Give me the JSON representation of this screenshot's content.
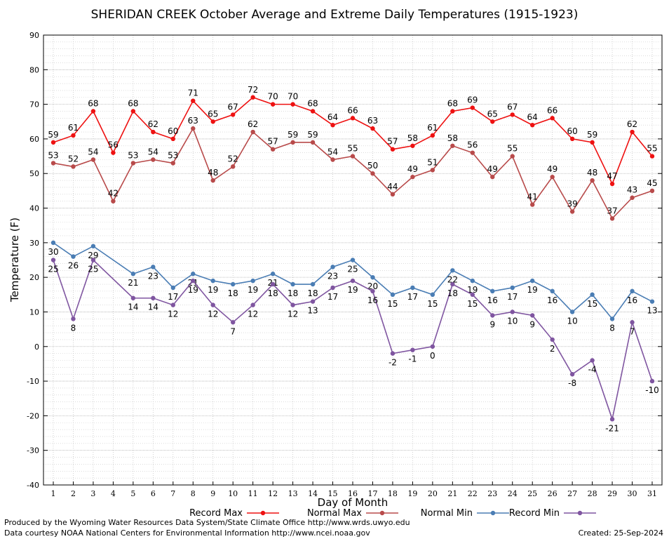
{
  "chart_data": {
    "type": "line",
    "title": "SHERIDAN CREEK October Average and Extreme Daily Temperatures (1915-1923)",
    "xlabel": "Day of Month",
    "ylabel": "Temperature (F)",
    "ylim": [
      -40,
      90
    ],
    "xlim": [
      1,
      31
    ],
    "yticks": [
      -40,
      -30,
      -20,
      -10,
      0,
      10,
      20,
      30,
      40,
      50,
      60,
      70,
      80,
      90
    ],
    "x": [
      1,
      2,
      3,
      4,
      5,
      6,
      7,
      8,
      9,
      10,
      11,
      12,
      13,
      14,
      15,
      16,
      17,
      18,
      19,
      20,
      21,
      22,
      23,
      24,
      25,
      26,
      27,
      28,
      29,
      30,
      31
    ],
    "grid": true,
    "legend_position": "bottom",
    "series": [
      {
        "name": "Record Max",
        "color": "#ee1111",
        "label_pos": "above",
        "values": [
          59,
          61,
          68,
          56,
          68,
          62,
          60,
          71,
          65,
          67,
          72,
          70,
          70,
          68,
          64,
          66,
          63,
          57,
          58,
          61,
          68,
          69,
          65,
          67,
          64,
          66,
          60,
          59,
          47,
          62,
          55
        ]
      },
      {
        "name": "Normal Max",
        "color": "#b84a4a",
        "label_pos": "above",
        "values": [
          53,
          52,
          54,
          42,
          53,
          54,
          53,
          63,
          48,
          52,
          62,
          57,
          59,
          59,
          54,
          55,
          50,
          44,
          49,
          51,
          58,
          56,
          49,
          55,
          41,
          49,
          39,
          48,
          37,
          43,
          45
        ]
      },
      {
        "name": "Normal Min",
        "color": "#4a7db4",
        "label_pos": "below",
        "values": [
          30,
          26,
          29,
          null,
          21,
          23,
          17,
          21,
          19,
          18,
          19,
          21,
          18,
          18,
          23,
          25,
          20,
          15,
          17,
          15,
          22,
          19,
          16,
          17,
          19,
          16,
          10,
          15,
          8,
          16,
          13
        ]
      },
      {
        "name": "Record Min",
        "color": "#7f55a0",
        "label_pos": "below",
        "values": [
          25,
          8,
          25,
          null,
          14,
          14,
          12,
          19,
          12,
          7,
          12,
          18,
          12,
          13,
          17,
          19,
          16,
          -2,
          -1,
          0,
          18,
          15,
          9,
          10,
          9,
          2,
          -8,
          -4,
          -21,
          7,
          -10
        ]
      }
    ]
  },
  "footer": {
    "line1": "Produced by the Wyoming Water Resources Data System/State Climate Office http://www.wrds.uwyo.edu",
    "line2": "Data courtesy NOAA National Centers for Environmental Information http://www.ncei.noaa.gov",
    "created": "Created:  25-Sep-2024"
  }
}
